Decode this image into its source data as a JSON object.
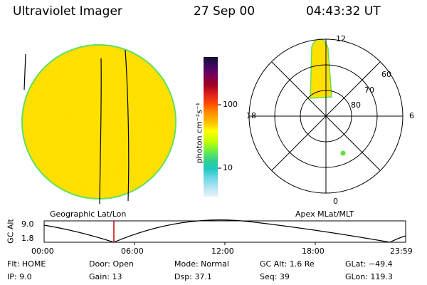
{
  "header": {
    "title": "Ultraviolet Imager",
    "date": "27 Sep 00",
    "time": "04:43:32 UT"
  },
  "colorbar": {
    "label": "photon cm⁻²s⁻¹",
    "ticks": [
      "100",
      "10"
    ],
    "colors": [
      "#101030",
      "#2a0a50",
      "#500060",
      "#800040",
      "#b00000",
      "#e02020",
      "#ff5000",
      "#ff8000",
      "#ffb000",
      "#ffe000",
      "#ffff00",
      "#d0ff00",
      "#80ff40",
      "#40e080",
      "#20c0b0",
      "#60d0e0",
      "#a0e0f0",
      "#d0eef8"
    ]
  },
  "polar_plot": {
    "lat_labels": [
      "60",
      "70",
      "80"
    ],
    "mlt_labels": {
      "top": "12",
      "left": "18",
      "right": "6",
      "bottom": "0"
    }
  },
  "bottom_strip": {
    "left_title": "Geographic Lat/Lon",
    "right_title": "Apex MLat/MLT",
    "y_label": "GC Alt",
    "y_ticks": [
      "9.0",
      "1.8"
    ],
    "x_ticks": [
      "00:00",
      "06:00",
      "12:00",
      "18:00",
      "23:59"
    ]
  },
  "info": {
    "flt": "Flt: HOME",
    "ip": "IP:  9.0",
    "door": "Door: Open",
    "gain": "Gain: 13",
    "mode": "Mode: Normal",
    "dsp": "Dsp:   37.1",
    "gcalt": "GC Alt: 1.6 Re",
    "seq": "Seq: 39",
    "glat": "GLat: −49.4",
    "glon": "GLon: 119.3"
  },
  "colors": {
    "disk_yellow": "#ffe000",
    "disk_orange": "#f5b000",
    "disk_rim": "#60e060",
    "marker_red": "#cc0000",
    "dot_green": "#60e040"
  }
}
